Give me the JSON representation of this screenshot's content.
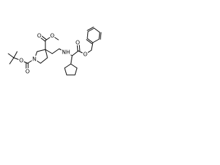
{
  "atoms": [
    {
      "label": "O"
    },
    {
      "label": "O"
    },
    {
      "label": "N"
    },
    {
      "label": "O"
    },
    {
      "label": "O"
    },
    {
      "label": "NH"
    },
    {
      "label": "O"
    },
    {
      "label": "O"
    }
  ]
}
